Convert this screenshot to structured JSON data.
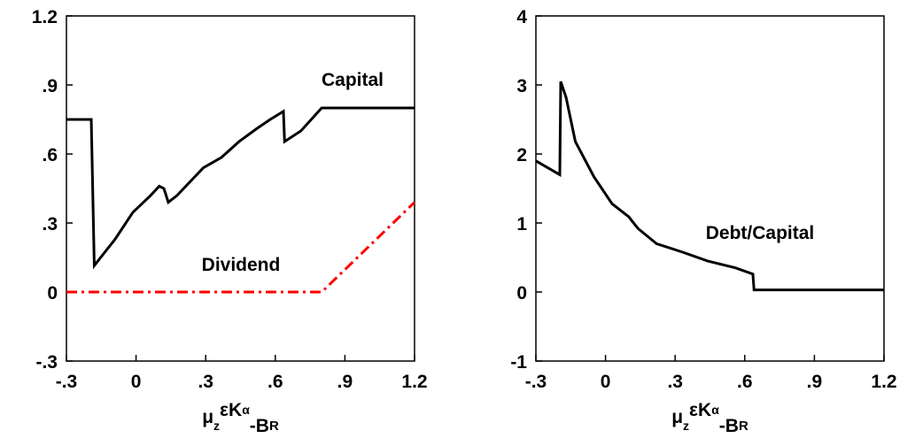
{
  "chart_data": [
    {
      "type": "line",
      "xlabel": [
        "μ",
        "z",
        "εK",
        "α",
        "-B",
        "R"
      ],
      "xlim": [
        -0.3,
        1.2
      ],
      "xticks": [
        -0.3,
        0,
        0.3,
        0.6,
        0.9,
        1.2
      ],
      "ylim": [
        -0.3,
        1.2
      ],
      "yticks": [
        -0.3,
        0,
        0.3,
        0.6,
        0.9,
        1.2
      ],
      "grid": false,
      "series": [
        {
          "name": "Capital",
          "color": "#000000",
          "dash": "solid",
          "x": [
            -0.3,
            -0.193,
            -0.18,
            -0.09,
            -0.014,
            0.063,
            0.1,
            0.12,
            0.139,
            0.177,
            0.29,
            0.368,
            0.444,
            0.52,
            0.578,
            0.635,
            0.64,
            0.71,
            0.8,
            1.2
          ],
          "values": [
            0.75,
            0.75,
            0.115,
            0.23,
            0.346,
            0.42,
            0.46,
            0.45,
            0.39,
            0.42,
            0.54,
            0.585,
            0.654,
            0.71,
            0.75,
            0.785,
            0.654,
            0.7,
            0.8,
            0.8
          ]
        },
        {
          "name": "Dividend",
          "color": "#ff0000",
          "dash": "dashdot",
          "x": [
            -0.3,
            0.8,
            1.2
          ],
          "values": [
            0,
            0,
            0.39
          ]
        }
      ]
    },
    {
      "type": "line",
      "xlabel": [
        "μ",
        "z",
        "εK",
        "α",
        "-B",
        "R"
      ],
      "xlim": [
        -0.3,
        1.2
      ],
      "xticks": [
        -0.3,
        0,
        0.3,
        0.6,
        0.9,
        1.2
      ],
      "ylim": [
        -1,
        4
      ],
      "yticks": [
        -1,
        0,
        1,
        2,
        3,
        4
      ],
      "grid": false,
      "series": [
        {
          "name": "Debt/Capital",
          "color": "#000000",
          "dash": "solid",
          "x": [
            -0.3,
            -0.197,
            -0.193,
            -0.17,
            -0.13,
            -0.05,
            0.028,
            0.1,
            0.14,
            0.22,
            0.33,
            0.44,
            0.56,
            0.635,
            0.64,
            1.2
          ],
          "values": [
            1.9,
            1.7,
            3.05,
            2.82,
            2.18,
            1.67,
            1.28,
            1.09,
            0.92,
            0.7,
            0.58,
            0.45,
            0.35,
            0.26,
            0.03,
            0.03
          ]
        }
      ]
    }
  ]
}
